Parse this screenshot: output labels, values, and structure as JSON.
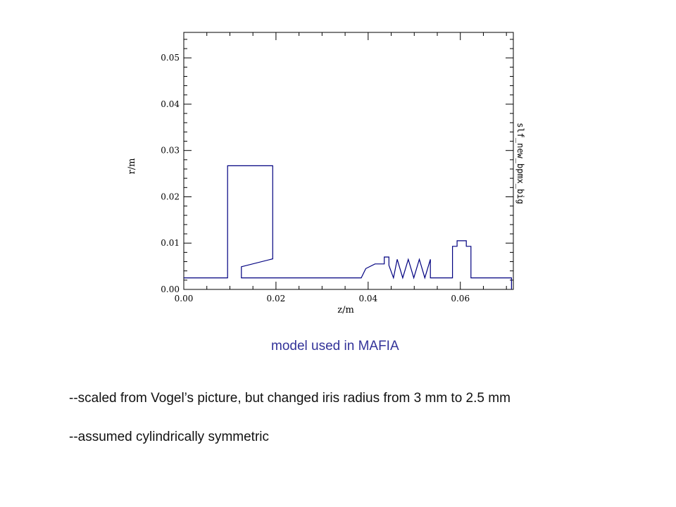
{
  "chart_data": {
    "type": "line",
    "xlabel": "z/m",
    "ylabel": "r/m",
    "side_label": "slf_new_bpmx_big",
    "xlim": [
      0.0,
      0.0715
    ],
    "ylim": [
      0.0,
      0.0555
    ],
    "x_ticks": [
      "0.00",
      "0.02",
      "0.04",
      "0.06"
    ],
    "y_ticks": [
      "0.00",
      "0.01",
      "0.02",
      "0.03",
      "0.04",
      "0.05"
    ],
    "line_color": "#000080",
    "series": [
      {
        "x": [
          0.0,
          0.0095,
          0.0095,
          0.0193,
          0.0193,
          0.0125,
          0.0125,
          0.0125,
          0.0385,
          0.0395,
          0.0415,
          0.0435,
          0.0435,
          0.0445,
          0.0445,
          0.0455,
          0.0463,
          0.0475,
          0.0487,
          0.0499,
          0.0511,
          0.0523,
          0.0535,
          0.0535,
          0.0545,
          0.0545,
          0.0583,
          0.0583,
          0.0593,
          0.0593,
          0.0603,
          0.0603,
          0.0613,
          0.0613,
          0.0623,
          0.0623,
          0.0633,
          0.0633,
          0.0711,
          0.0711
        ],
        "y": [
          0.0025,
          0.0025,
          0.0267,
          0.0267,
          0.0066,
          0.0049,
          0.0025,
          0.0025,
          0.0025,
          0.0045,
          0.0055,
          0.0055,
          0.007,
          0.007,
          0.0052,
          0.0025,
          0.0065,
          0.0025,
          0.0065,
          0.0025,
          0.0065,
          0.0025,
          0.0065,
          0.0025,
          0.0025,
          0.0025,
          0.0025,
          0.0093,
          0.0093,
          0.0105,
          0.0105,
          0.0105,
          0.0105,
          0.0093,
          0.0093,
          0.0025,
          0.0025,
          0.0025,
          0.0025,
          0.0
        ]
      }
    ]
  },
  "caption": "model used in MAFIA",
  "notes": [
    "--scaled from Vogel’s picture, but changed iris radius from 3 mm to 2.5 mm",
    "--assumed cylindrically symmetric"
  ]
}
